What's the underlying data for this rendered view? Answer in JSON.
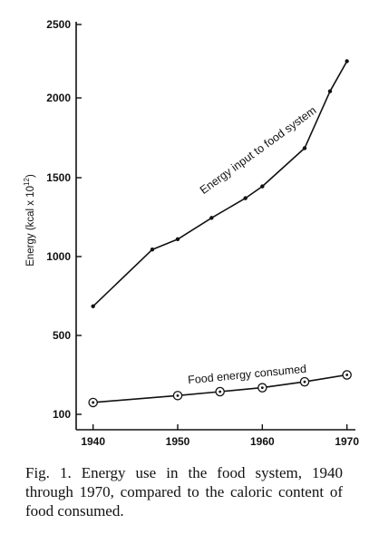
{
  "chart_data": {
    "type": "line",
    "title": "",
    "xlabel": "",
    "ylabel": "Energy (kcal x 10",
    "ylabel_exponent": "12",
    "ylabel_close": ")",
    "xlim": [
      1938,
      1971
    ],
    "ylim": [
      60,
      2500
    ],
    "x_ticks": [
      1940,
      1950,
      1960,
      1970
    ],
    "x_tick_labels": [
      "1940",
      "1950",
      "1960",
      "1970"
    ],
    "y_ticks": [
      100,
      500,
      1000,
      1500,
      2000,
      2500
    ],
    "y_tick_labels": [
      "100",
      "500",
      "1000",
      "1500",
      "2000",
      "2500"
    ],
    "grid": false,
    "legend": "none",
    "series": [
      {
        "name": "Energy input to food system",
        "marker": "dot",
        "x": [
          1940,
          1947,
          1950,
          1954,
          1958,
          1960,
          1965,
          1968,
          1970
        ],
        "y": [
          685,
          1045,
          1110,
          1245,
          1370,
          1445,
          1685,
          2045,
          2250
        ]
      },
      {
        "name": "Food energy consumed",
        "marker": "circled-dot",
        "x": [
          1940,
          1950,
          1955,
          1960,
          1965,
          1970
        ],
        "y": [
          160,
          195,
          215,
          235,
          265,
          300
        ]
      }
    ]
  },
  "caption": "Fig. 1. Energy use in the food system, 1940 through 1970, compared to the caloric content of food consumed."
}
